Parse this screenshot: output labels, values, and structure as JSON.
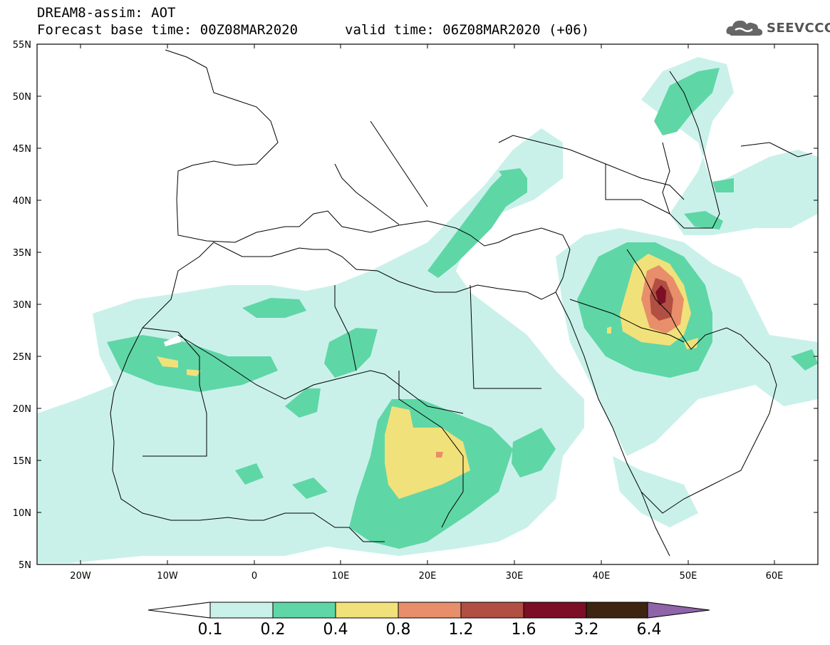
{
  "header": {
    "line1": "DREAM8-assim: AOT",
    "line2a": "Forecast base time: 00Z08MAR2020",
    "line2b": "valid time: 06Z08MAR2020 (+06)"
  },
  "logo": {
    "text": "SEEVCCC",
    "icon": "cloud-logo-icon"
  },
  "map": {
    "lat_labels": [
      "55N",
      "50N",
      "45N",
      "40N",
      "35N",
      "30N",
      "25N",
      "20N",
      "15N",
      "10N",
      "5N"
    ],
    "lon_labels": [
      "20W",
      "10W",
      "0",
      "10E",
      "20E",
      "30E",
      "40E",
      "50E",
      "60E"
    ]
  },
  "colorbar": {
    "labels": [
      "0.1",
      "0.2",
      "0.4",
      "0.8",
      "1.2",
      "1.6",
      "3.2",
      "6.4"
    ],
    "colors": [
      "#c9f1ea",
      "#5fd6a6",
      "#f1e17a",
      "#e88e6a",
      "#b04f42",
      "#7c0f25",
      "#3d2512",
      "#8f64a8"
    ]
  },
  "aot_colors": {
    "low": "#c9f1ea",
    "moderate": "#5fd6a6",
    "high": "#f1e17a",
    "very_high": "#e88e6a",
    "extreme": "#b04f42",
    "peak": "#7c0f25"
  }
}
